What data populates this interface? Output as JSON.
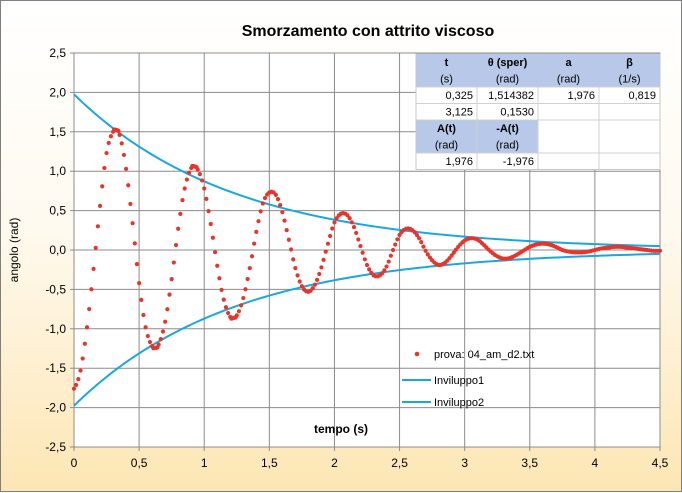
{
  "chart_data": {
    "type": "scatter",
    "title": "Smorzamento  con  attrito viscoso",
    "xlabel": "tempo (s)",
    "ylabel": "angolo (rad)",
    "xlim": [
      0,
      4.5
    ],
    "ylim": [
      -2.5,
      2.5
    ],
    "x_ticks": [
      "0",
      "0,5",
      "1",
      "1,5",
      "2",
      "2,5",
      "3",
      "3,5",
      "4",
      "4,5"
    ],
    "y_ticks": [
      "2,5",
      "2,0",
      "1,5",
      "1,0",
      "0,5",
      "0,0",
      "-0,5",
      "-1,0",
      "-1,5",
      "-2,0",
      "-2,5"
    ],
    "grid": true,
    "legend_position": "bottom-right",
    "series": [
      {
        "name": "prova: 04_am_d2.txt",
        "kind": "scatter",
        "color": "#e8342a",
        "x": [
          0.0,
          0.05,
          0.1,
          0.15,
          0.2,
          0.25,
          0.3,
          0.325,
          0.35,
          0.4,
          0.45,
          0.5,
          0.55,
          0.6,
          0.625,
          0.65,
          0.7,
          0.75,
          0.8,
          0.85,
          0.9,
          0.925,
          0.95,
          1.0,
          1.05,
          1.1,
          1.15,
          1.2,
          1.225,
          1.25,
          1.3,
          1.35,
          1.4,
          1.45,
          1.5,
          1.55,
          1.6,
          1.65,
          1.7,
          1.75,
          1.8,
          1.85,
          1.9,
          1.95,
          2.0,
          2.05,
          2.1,
          2.15,
          2.2,
          2.25,
          2.3,
          2.35,
          2.4,
          2.45,
          2.5,
          2.55,
          2.6,
          2.65,
          2.7,
          2.75,
          2.8,
          2.85,
          2.9,
          2.95,
          3.0,
          3.05,
          3.1,
          3.15,
          3.2,
          3.25,
          3.3,
          3.35,
          3.4,
          3.45,
          3.5,
          3.55,
          3.6,
          3.65,
          3.7,
          3.75,
          3.8,
          3.85,
          3.9,
          3.95,
          4.0,
          4.05,
          4.1,
          4.15,
          4.2,
          4.25,
          4.3,
          4.35,
          4.4,
          4.45,
          4.5
        ],
        "y": [
          -1.76,
          -1.53,
          -0.98,
          -0.24,
          0.56,
          1.23,
          1.5,
          1.52,
          1.46,
          1.03,
          0.34,
          -0.42,
          -0.98,
          -1.22,
          -1.24,
          -1.2,
          -0.91,
          -0.37,
          0.27,
          0.78,
          1.04,
          1.06,
          1.02,
          0.78,
          0.33,
          -0.2,
          -0.63,
          -0.85,
          -0.86,
          -0.83,
          -0.61,
          -0.23,
          0.23,
          0.59,
          0.73,
          0.7,
          0.48,
          0.13,
          -0.23,
          -0.46,
          -0.53,
          -0.44,
          -0.22,
          0.08,
          0.35,
          0.46,
          0.44,
          0.29,
          0.05,
          -0.19,
          -0.32,
          -0.32,
          -0.21,
          0.0,
          0.19,
          0.27,
          0.25,
          0.15,
          -0.01,
          -0.13,
          -0.19,
          -0.16,
          -0.07,
          0.04,
          0.12,
          0.15,
          0.13,
          0.06,
          -0.02,
          -0.08,
          -0.11,
          -0.1,
          -0.06,
          -0.01,
          0.04,
          0.07,
          0.08,
          0.07,
          0.04,
          0.0,
          -0.02,
          -0.03,
          -0.03,
          -0.02,
          0.0,
          0.02,
          0.03,
          0.04,
          0.04,
          0.03,
          0.02,
          0.01,
          0.0,
          -0.01,
          -0.01
        ]
      },
      {
        "name": "Inviluppo1",
        "kind": "line",
        "color": "#1aa7e0",
        "A": 1.976,
        "beta": 0.819,
        "sign": 1
      },
      {
        "name": "Inviluppo2",
        "kind": "line",
        "color": "#1aa7e0",
        "A": 1.976,
        "beta": 0.819,
        "sign": -1
      }
    ],
    "table": {
      "rows": [
        [
          "t",
          "θ (sper)",
          "a",
          "β"
        ],
        [
          "(s)",
          "(rad)",
          "(rad)",
          "(1/s)"
        ],
        [
          "0,325",
          "1,514382",
          "1,976",
          "0,819"
        ],
        [
          "3,125",
          "0,1530",
          "",
          ""
        ],
        [
          "A(t)",
          "-A(t)",
          "",
          ""
        ],
        [
          "(rad)",
          "(rad)",
          "",
          ""
        ],
        [
          "1,976",
          "-1,976",
          "",
          ""
        ]
      ]
    }
  }
}
